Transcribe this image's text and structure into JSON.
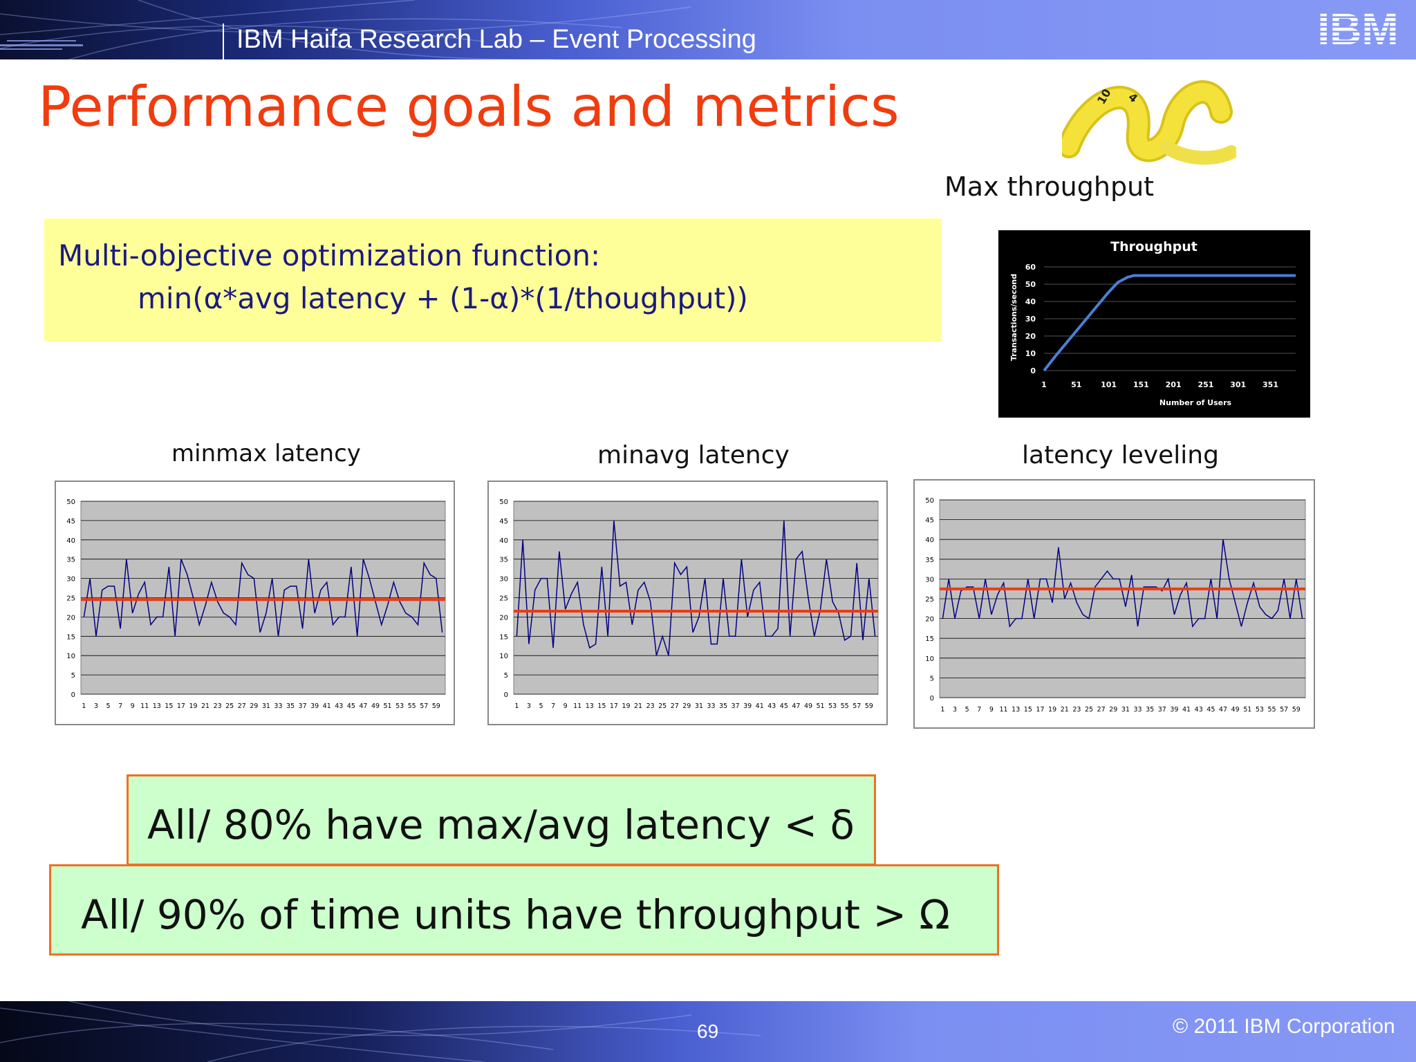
{
  "header": {
    "title": "IBM Haifa Research Lab – Event Processing",
    "logo_text": "IBM"
  },
  "slide": {
    "title": "Performance goals and metrics",
    "page_number": "69",
    "copyright": "© 2011 IBM Corporation"
  },
  "throughput": {
    "label": "Max throughput",
    "chart_data": {
      "type": "line",
      "title": "Throughput",
      "xlabel": "Number of Users",
      "ylabel": "Transactions/second",
      "x_ticks": [
        "1",
        "51",
        "101",
        "151",
        "201",
        "251",
        "301",
        "351"
      ],
      "y_ticks": [
        "0",
        "10",
        "20",
        "30",
        "40",
        "50",
        "60"
      ],
      "ylim": [
        0,
        60
      ],
      "xlim": [
        1,
        390
      ],
      "grid": true,
      "series": [
        {
          "x": [
            1,
            20,
            40,
            60,
            80,
            100,
            115,
            130,
            140,
            160,
            200,
            250,
            300,
            350,
            390
          ],
          "y": [
            0,
            9,
            18,
            27,
            36,
            45,
            51,
            54,
            55,
            55,
            55,
            55,
            55,
            55,
            55
          ]
        }
      ]
    }
  },
  "formula": {
    "line1": "Multi-objective optimization function:",
    "line2": "min(α*avg latency + (1-α)*(1/thoughput))"
  },
  "latency_charts": [
    {
      "title": "minmax latency",
      "chart_data": {
        "type": "line",
        "ylim": [
          0,
          50
        ],
        "y_ticks": [
          "0",
          "5",
          "10",
          "15",
          "20",
          "25",
          "30",
          "35",
          "40",
          "45",
          "50"
        ],
        "x_ticks": [
          "1",
          "3",
          "5",
          "7",
          "9",
          "11",
          "13",
          "15",
          "17",
          "19",
          "21",
          "23",
          "25",
          "27",
          "29",
          "31",
          "33",
          "35",
          "37",
          "39",
          "41",
          "43",
          "45",
          "47",
          "49",
          "51",
          "53",
          "55",
          "57",
          "59"
        ],
        "grid": true,
        "series": [
          {
            "values": [
              20,
              30,
              15,
              27,
              28,
              28,
              17,
              35,
              21,
              26,
              29,
              18,
              20,
              20,
              33,
              15,
              35,
              31,
              25,
              18,
              23,
              29,
              24,
              21,
              20,
              18,
              34,
              31,
              30,
              16,
              21,
              30,
              15,
              27,
              28,
              28,
              17,
              35,
              21,
              27,
              29,
              18,
              20,
              20,
              33,
              15,
              35,
              30,
              24,
              18,
              23,
              29,
              24,
              21,
              20,
              18,
              34,
              31,
              30,
              16
            ]
          }
        ],
        "reference_line": 24.5
      }
    },
    {
      "title": "minavg latency",
      "chart_data": {
        "type": "line",
        "ylim": [
          0,
          50
        ],
        "y_ticks": [
          "0",
          "5",
          "10",
          "15",
          "20",
          "25",
          "30",
          "35",
          "40",
          "45",
          "50"
        ],
        "x_ticks": [
          "1",
          "3",
          "5",
          "7",
          "9",
          "11",
          "13",
          "15",
          "17",
          "19",
          "21",
          "23",
          "25",
          "27",
          "29",
          "31",
          "33",
          "35",
          "37",
          "39",
          "41",
          "43",
          "45",
          "47",
          "49",
          "51",
          "53",
          "55",
          "57",
          "59"
        ],
        "grid": true,
        "series": [
          {
            "values": [
              15,
              40,
              13,
              27,
              30,
              30,
              12,
              37,
              22,
              26,
              29,
              18,
              12,
              13,
              33,
              15,
              45,
              28,
              29,
              18,
              27,
              29,
              24,
              10,
              15,
              10,
              34,
              31,
              33,
              16,
              20,
              30,
              13,
              13,
              30,
              15,
              15,
              35,
              20,
              27,
              29,
              15,
              15,
              17,
              45,
              15,
              35,
              37,
              25,
              15,
              22,
              35,
              24,
              21,
              14,
              15,
              34,
              14,
              30,
              15
            ]
          }
        ],
        "reference_line": 21.5
      }
    },
    {
      "title": "latency leveling",
      "chart_data": {
        "type": "line",
        "ylim": [
          0,
          50
        ],
        "y_ticks": [
          "0",
          "5",
          "10",
          "15",
          "20",
          "25",
          "30",
          "35",
          "40",
          "45",
          "50"
        ],
        "x_ticks": [
          "1",
          "3",
          "5",
          "7",
          "9",
          "11",
          "13",
          "15",
          "17",
          "19",
          "21",
          "23",
          "25",
          "27",
          "29",
          "31",
          "33",
          "35",
          "37",
          "39",
          "41",
          "43",
          "45",
          "47",
          "49",
          "51",
          "53",
          "55",
          "57",
          "59"
        ],
        "grid": true,
        "series": [
          {
            "values": [
              20,
              30,
              20,
              27,
              28,
              28,
              20,
              30,
              21,
              26,
              29,
              18,
              20,
              20,
              30,
              20,
              30,
              30,
              24,
              38,
              25,
              29,
              24,
              21,
              20,
              28,
              30,
              32,
              30,
              30,
              23,
              31,
              18,
              28,
              28,
              28,
              27,
              30,
              21,
              26,
              29,
              18,
              20,
              20,
              30,
              20,
              40,
              30,
              24,
              18,
              24,
              29,
              23,
              21,
              20,
              22,
              30,
              20,
              30,
              20
            ]
          }
        ],
        "reference_line": 27.5
      }
    }
  ],
  "goals": {
    "goal1": "All/ 80% have max/avg latency < δ",
    "goal2": "All/ 90%  of time units have throughput > Ω"
  }
}
